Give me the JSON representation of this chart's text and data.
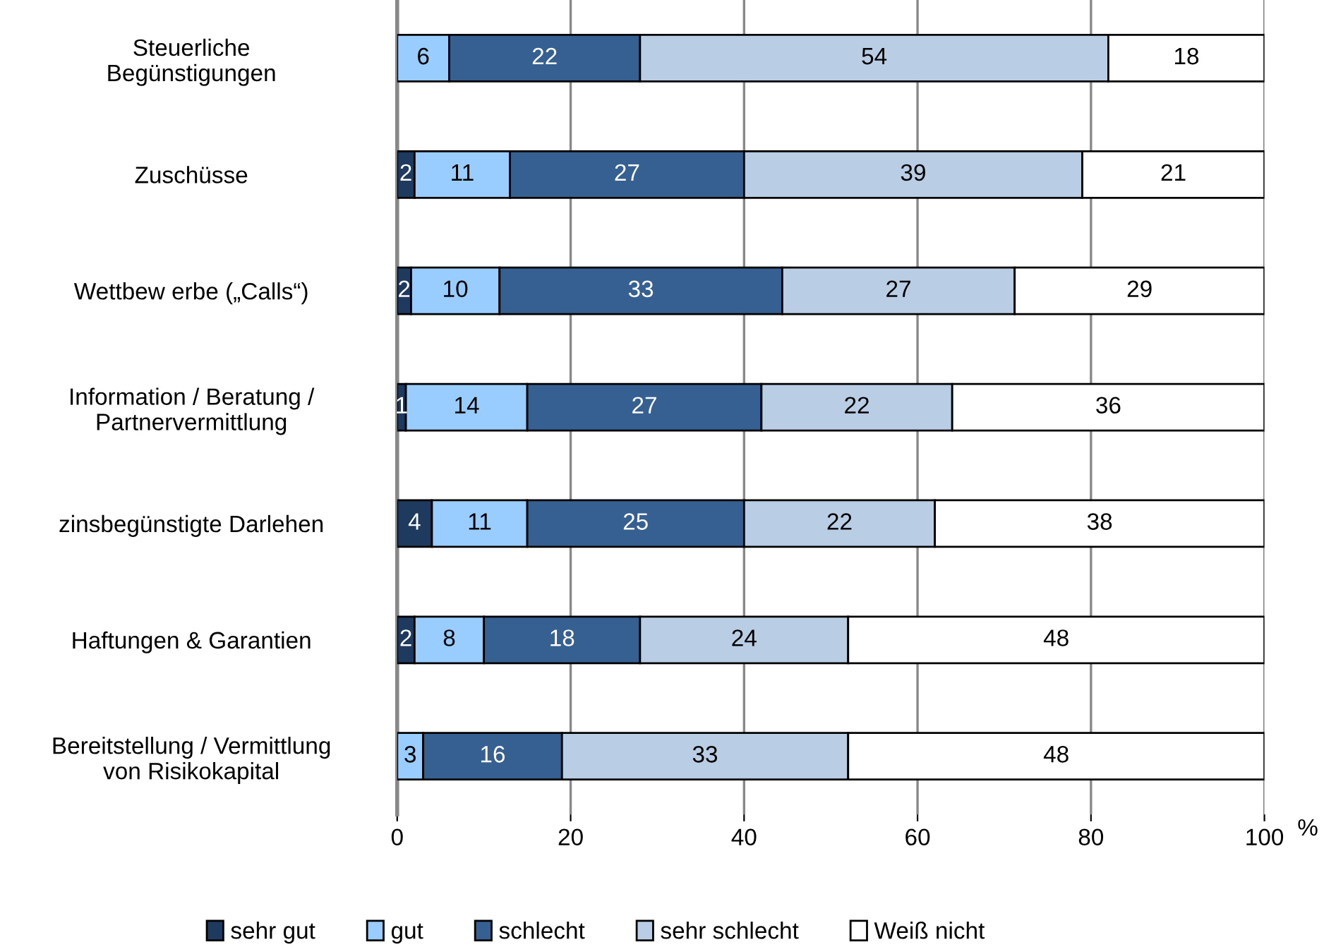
{
  "chart_data": {
    "type": "bar",
    "orientation": "horizontal",
    "stacked": true,
    "categories": [
      "Steuerliche\nBegünstigungen",
      "Zuschüsse",
      "Wettbew erbe („Calls“)",
      "Information / Beratung /\nPartnervermittlung",
      "zinsbegünstigte Darlehen",
      "Haftungen & Garantien",
      "Bereitstellung / Vermittlung\nvon Risikokapital"
    ],
    "series": [
      {
        "name": "sehr gut",
        "color": "#1f3a5f",
        "values": [
          null,
          2,
          1.6,
          1,
          4,
          2,
          null
        ],
        "value_labels": [
          null,
          "2",
          "2",
          "1",
          "4",
          "2",
          null
        ]
      },
      {
        "name": "gut",
        "color": "#99ccff",
        "values": [
          6,
          11,
          10.2,
          14,
          11,
          8,
          3
        ],
        "value_labels": [
          "6",
          "11",
          "10",
          "14",
          "11",
          "8",
          "3"
        ]
      },
      {
        "name": "schlecht",
        "color": "#376092",
        "values": [
          22,
          27,
          32.6,
          27,
          25,
          18,
          16
        ],
        "value_labels": [
          "22",
          "27",
          "33",
          "27",
          "25",
          "18",
          "16"
        ]
      },
      {
        "name": "sehr schlecht",
        "color": "#b9cde5",
        "values": [
          54,
          39,
          26.8,
          22,
          22,
          24,
          33
        ],
        "value_labels": [
          "54",
          "39",
          "27",
          "22",
          "22",
          "24",
          "33"
        ]
      },
      {
        "name": "Weiß nicht",
        "color": "#ffffff",
        "values": [
          18,
          21,
          28.8,
          36,
          38,
          48,
          48
        ],
        "value_labels": [
          "18",
          "21",
          "29",
          "36",
          "38",
          "48",
          "48"
        ]
      }
    ],
    "xlim": [
      0,
      100
    ],
    "xticks": [
      0,
      20,
      40,
      60,
      80,
      100
    ],
    "xlabel": "%",
    "grid": "x",
    "legend": "bottom"
  }
}
